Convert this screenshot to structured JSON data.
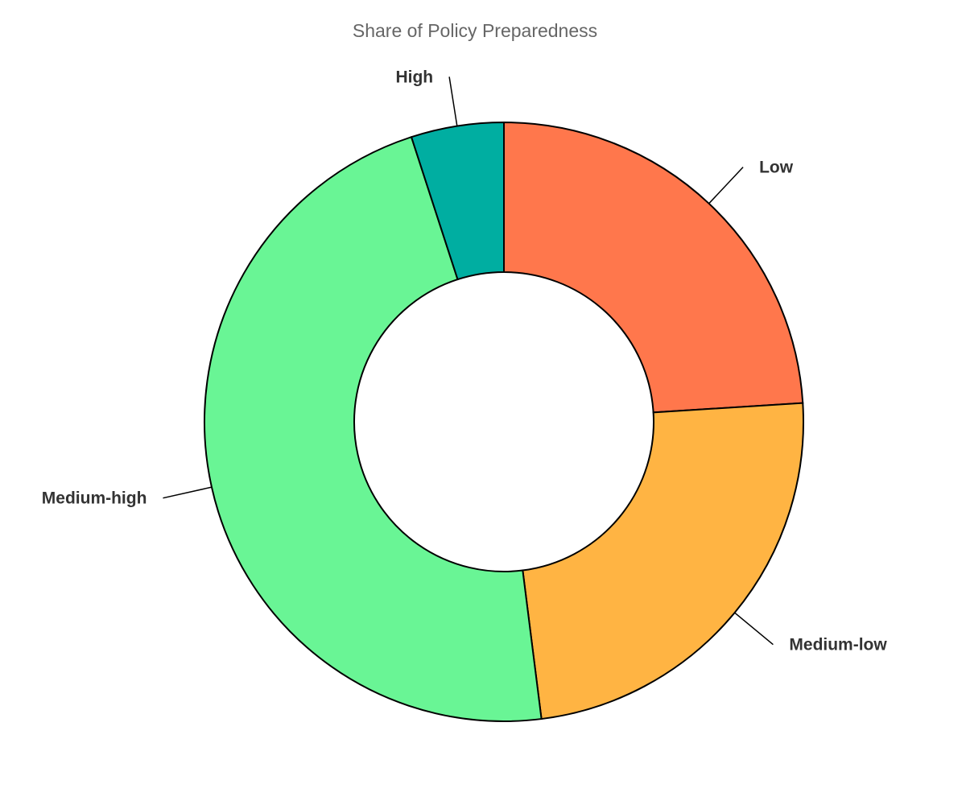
{
  "chart_data": {
    "type": "pie",
    "title": "Share of Policy Preparedness",
    "donut": true,
    "slices": [
      {
        "label": "Low",
        "value": 24,
        "color": "#ff774c"
      },
      {
        "label": "Medium-low",
        "value": 24,
        "color": "#ffb443"
      },
      {
        "label": "Medium-high",
        "value": 47,
        "color": "#69f595"
      },
      {
        "label": "High",
        "value": 5,
        "color": "#00aea1"
      }
    ]
  }
}
